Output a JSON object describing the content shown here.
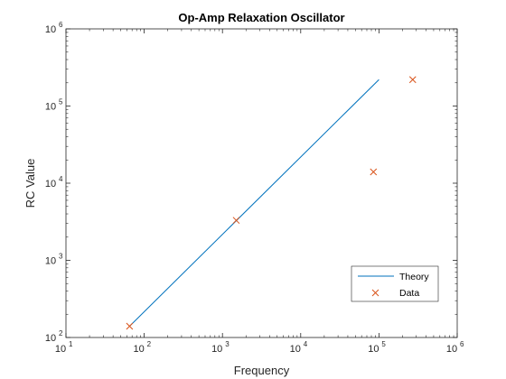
{
  "chart_data": {
    "type": "line",
    "title": "Op-Amp Relaxation Oscillator",
    "xlabel": "Frequency",
    "ylabel": "RC Value",
    "xscale": "log",
    "yscale": "log",
    "xlim": [
      10,
      1000000
    ],
    "ylim": [
      100,
      1000000
    ],
    "x_ticks": [
      {
        "base": "10",
        "exp": "1",
        "value": 10
      },
      {
        "base": "10",
        "exp": "2",
        "value": 100
      },
      {
        "base": "10",
        "exp": "3",
        "value": 1000
      },
      {
        "base": "10",
        "exp": "4",
        "value": 10000
      },
      {
        "base": "10",
        "exp": "5",
        "value": 100000
      },
      {
        "base": "10",
        "exp": "6",
        "value": 1000000
      }
    ],
    "y_ticks": [
      {
        "base": "10",
        "exp": "2",
        "value": 100
      },
      {
        "base": "10",
        "exp": "3",
        "value": 1000
      },
      {
        "base": "10",
        "exp": "4",
        "value": 10000
      },
      {
        "base": "10",
        "exp": "5",
        "value": 100000
      },
      {
        "base": "10",
        "exp": "6",
        "value": 1000000
      }
    ],
    "grid": false,
    "box": true,
    "legend_location": "bottom-right",
    "series": [
      {
        "name": "Theory",
        "style": "line",
        "color": "#0072BD",
        "x": [
          65,
          100000
        ],
        "y": [
          140,
          220000
        ]
      },
      {
        "name": "Data",
        "style": "marker-x",
        "color": "#D95319",
        "x": [
          65,
          1500,
          85000,
          270000
        ],
        "y": [
          140,
          3300,
          14000,
          220000
        ]
      }
    ]
  }
}
